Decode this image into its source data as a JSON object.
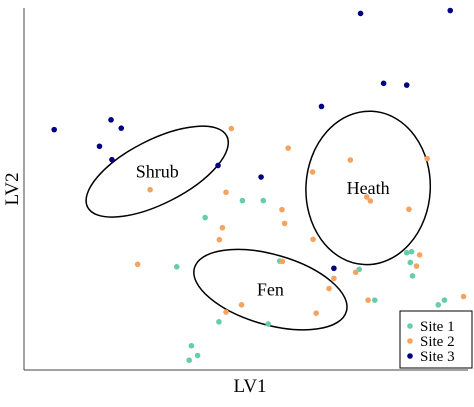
{
  "chart_data": {
    "type": "scatter",
    "xlabel": "LV1",
    "ylabel": "LV2",
    "xlim": [
      0,
      1
    ],
    "ylim": [
      0,
      1
    ],
    "grid": false,
    "legend_position": "bottom-right",
    "series": [
      {
        "name": "Site 1",
        "color": "#66cdaa",
        "points": [
          [
            0.492,
            0.468
          ],
          [
            0.539,
            0.468
          ],
          [
            0.408,
            0.421
          ],
          [
            0.344,
            0.285
          ],
          [
            0.576,
            0.301
          ],
          [
            0.862,
            0.324
          ],
          [
            0.873,
            0.327
          ],
          [
            0.87,
            0.297
          ],
          [
            0.755,
            0.278
          ],
          [
            0.79,
            0.193
          ],
          [
            0.933,
            0.18
          ],
          [
            0.439,
            0.133
          ],
          [
            0.55,
            0.127
          ],
          [
            0.377,
            0.067
          ],
          [
            0.391,
            0.04
          ],
          [
            0.372,
            0.027
          ],
          [
            0.875,
            0.26
          ],
          [
            0.947,
            0.193
          ]
        ]
      },
      {
        "name": "Site 2",
        "color": "#f4a460",
        "points": [
          [
            0.467,
            0.667
          ],
          [
            0.595,
            0.613
          ],
          [
            0.65,
            0.547
          ],
          [
            0.735,
            0.58
          ],
          [
            0.772,
            0.478
          ],
          [
            0.78,
            0.467
          ],
          [
            0.908,
            0.584
          ],
          [
            0.867,
            0.444
          ],
          [
            0.581,
            0.443
          ],
          [
            0.455,
            0.491
          ],
          [
            0.284,
            0.498
          ],
          [
            0.587,
            0.405
          ],
          [
            0.447,
            0.393
          ],
          [
            0.44,
            0.36
          ],
          [
            0.651,
            0.361
          ],
          [
            0.582,
            0.3
          ],
          [
            0.256,
            0.292
          ],
          [
            0.698,
            0.253
          ],
          [
            0.687,
            0.225
          ],
          [
            0.775,
            0.193
          ],
          [
            0.49,
            0.18
          ],
          [
            0.455,
            0.16
          ],
          [
            0.658,
            0.157
          ],
          [
            0.884,
            0.287
          ],
          [
            0.891,
            0.318
          ],
          [
            0.99,
            0.203
          ],
          [
            0.747,
            0.27
          ]
        ]
      },
      {
        "name": "Site 3",
        "color": "#000080",
        "points": [
          [
            0.758,
            0.985
          ],
          [
            0.96,
            0.993
          ],
          [
            0.81,
            0.792
          ],
          [
            0.862,
            0.787
          ],
          [
            0.67,
            0.728
          ],
          [
            0.068,
            0.664
          ],
          [
            0.196,
            0.691
          ],
          [
            0.219,
            0.668
          ],
          [
            0.17,
            0.618
          ],
          [
            0.198,
            0.581
          ],
          [
            0.437,
            0.565
          ],
          [
            0.534,
            0.533
          ],
          [
            0.698,
            0.281
          ]
        ]
      }
    ],
    "ellipses": [
      {
        "label": "Shrub",
        "cx": 0.3,
        "cy": 0.548,
        "rx": 0.176,
        "ry": 0.088,
        "angle": -27
      },
      {
        "label": "Fen",
        "cx": 0.555,
        "cy": 0.222,
        "rx": 0.178,
        "ry": 0.097,
        "angle": 16
      },
      {
        "label": "Heath",
        "cx": 0.775,
        "cy": 0.503,
        "rx": 0.14,
        "ry": 0.212,
        "angle": 3
      }
    ]
  }
}
